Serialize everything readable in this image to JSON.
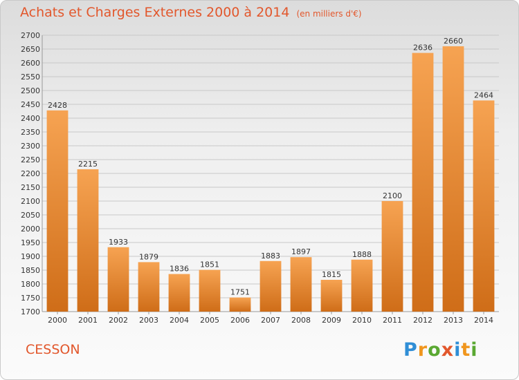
{
  "title": "Achats et Charges Externes 2000 à 2014",
  "unit": "(en milliers d'€)",
  "city": "CESSON",
  "logo": {
    "letters": [
      "P",
      "r",
      "o",
      "x",
      "i",
      "t",
      "i"
    ],
    "colors": [
      "#2f8ed6",
      "#f0961e",
      "#5aa832",
      "#e2572c",
      "#2f8ed6",
      "#f0961e",
      "#5aa832"
    ]
  },
  "colors": {
    "bar_top": "#f6a352",
    "bar_bottom": "#cf6d18",
    "grid": "#c8c8c8",
    "accent": "#e2572c"
  },
  "chart_data": {
    "type": "bar",
    "categories": [
      "2000",
      "2001",
      "2002",
      "2003",
      "2004",
      "2005",
      "2006",
      "2007",
      "2008",
      "2009",
      "2010",
      "2011",
      "2012",
      "2013",
      "2014"
    ],
    "values": [
      2428,
      2215,
      1933,
      1879,
      1836,
      1851,
      1751,
      1883,
      1897,
      1815,
      1888,
      2100,
      2636,
      2660,
      2464
    ],
    "ylim": [
      1700,
      2700
    ],
    "ytick_step": 50,
    "grid": true
  }
}
